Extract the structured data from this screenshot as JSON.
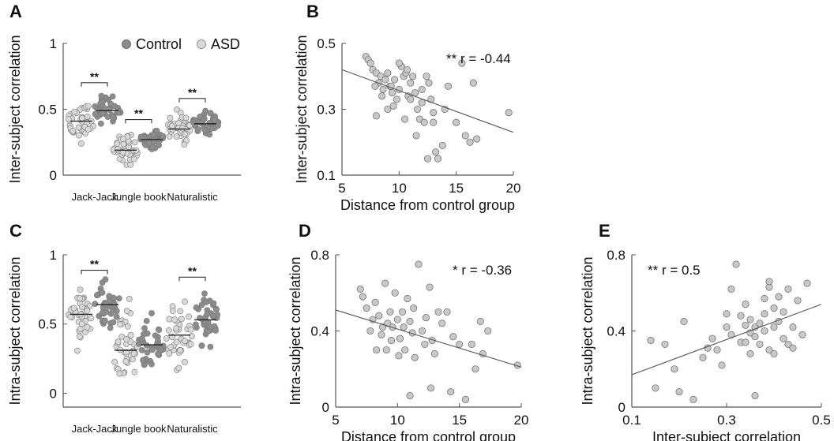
{
  "chart_data": [
    {
      "panel": "A",
      "type": "scatter",
      "ylabel": "Inter-subject correlation",
      "ylim": [
        0,
        1
      ],
      "yticks": [
        "0",
        "0.5",
        "1"
      ],
      "categories": [
        "Jack-Jack",
        "Jungle book",
        "Naturalistic"
      ],
      "legend": {
        "placement": "top-right",
        "items": [
          "Control",
          "ASD"
        ]
      },
      "series": [
        {
          "name": "ASD",
          "color": "#d9d9d9",
          "means": [
            0.41,
            0.19,
            0.35
          ],
          "spreads": [
            0.09,
            0.07,
            0.08
          ]
        },
        {
          "name": "Control",
          "color": "#8c8c8c",
          "means": [
            0.49,
            0.27,
            0.39
          ],
          "spreads": [
            0.07,
            0.04,
            0.06
          ]
        }
      ],
      "significance": [
        "**",
        "**",
        "**"
      ]
    },
    {
      "panel": "B",
      "type": "scatter",
      "xlabel": "Distance from control group",
      "ylabel": "Inter-subject correlation",
      "xlim": [
        5,
        20
      ],
      "ylim": [
        0.1,
        0.5
      ],
      "xticks": [
        "5",
        "10",
        "15",
        "20"
      ],
      "yticks": [
        "0.1",
        "0.3",
        "0.5"
      ],
      "annotation": "** r = -0.44",
      "fit": [
        [
          5,
          0.42
        ],
        [
          20,
          0.23
        ]
      ],
      "points": [
        [
          7.1,
          0.46
        ],
        [
          7.3,
          0.45
        ],
        [
          7.5,
          0.44
        ],
        [
          7.7,
          0.42
        ],
        [
          8.0,
          0.41
        ],
        [
          8.2,
          0.38
        ],
        [
          8.4,
          0.4
        ],
        [
          8.6,
          0.36
        ],
        [
          8.8,
          0.39
        ],
        [
          9.0,
          0.41
        ],
        [
          9.2,
          0.37
        ],
        [
          9.4,
          0.35
        ],
        [
          9.6,
          0.39
        ],
        [
          9.8,
          0.33
        ],
        [
          10.0,
          0.36
        ],
        [
          10.2,
          0.43
        ],
        [
          10.4,
          0.4
        ],
        [
          10.6,
          0.41
        ],
        [
          10.8,
          0.34
        ],
        [
          11.0,
          0.38
        ],
        [
          11.2,
          0.4
        ],
        [
          11.4,
          0.35
        ],
        [
          11.6,
          0.3
        ],
        [
          11.8,
          0.27
        ],
        [
          12.0,
          0.32
        ],
        [
          12.2,
          0.26
        ],
        [
          12.4,
          0.4
        ],
        [
          12.6,
          0.38
        ],
        [
          12.8,
          0.33
        ],
        [
          13.0,
          0.29
        ],
        [
          13.2,
          0.17
        ],
        [
          13.4,
          0.15
        ],
        [
          13.8,
          0.19
        ],
        [
          14.0,
          0.3
        ],
        [
          14.3,
          0.37
        ],
        [
          15.0,
          0.26
        ],
        [
          15.5,
          0.44
        ],
        [
          15.8,
          0.22
        ],
        [
          16.2,
          0.2
        ],
        [
          16.5,
          0.38
        ],
        [
          16.8,
          0.21
        ],
        [
          19.6,
          0.29
        ],
        [
          8.0,
          0.28
        ],
        [
          9.0,
          0.3
        ],
        [
          10.5,
          0.27
        ],
        [
          11.5,
          0.22
        ],
        [
          12.5,
          0.15
        ],
        [
          9.5,
          0.31
        ],
        [
          10.0,
          0.44
        ],
        [
          8.5,
          0.34
        ],
        [
          11.0,
          0.33
        ],
        [
          12.0,
          0.36
        ],
        [
          9.3,
          0.37
        ],
        [
          10.7,
          0.42
        ],
        [
          7.9,
          0.37
        ],
        [
          13.0,
          0.26
        ]
      ]
    },
    {
      "panel": "C",
      "type": "scatter",
      "ylabel": "Intra-subject correlation",
      "ylim": [
        -0.1,
        1
      ],
      "yticks": [
        "0",
        "0.5",
        "1"
      ],
      "categories": [
        "Jack-Jack",
        "Jungle book",
        "Naturalistic"
      ],
      "series": [
        {
          "name": "ASD",
          "color": "#d9d9d9",
          "means": [
            0.57,
            0.31,
            0.42
          ],
          "spreads": [
            0.12,
            0.17,
            0.15
          ]
        },
        {
          "name": "Control",
          "color": "#8c8c8c",
          "means": [
            0.64,
            0.35,
            0.53
          ],
          "spreads": [
            0.09,
            0.11,
            0.12
          ]
        }
      ],
      "significance": [
        "**",
        "",
        "**"
      ]
    },
    {
      "panel": "D",
      "type": "scatter",
      "xlabel": "Distance from control group",
      "ylabel": "Intra-subject correlation",
      "xlim": [
        5,
        20
      ],
      "ylim": [
        0,
        0.8
      ],
      "xticks": [
        "5",
        "10",
        "15",
        "20"
      ],
      "yticks": [
        "0",
        "0.4",
        "0.8"
      ],
      "annotation": "* r = -0.36",
      "fit": [
        [
          5,
          0.51
        ],
        [
          20,
          0.21
        ]
      ],
      "points": [
        [
          7.0,
          0.62
        ],
        [
          7.2,
          0.58
        ],
        [
          7.5,
          0.52
        ],
        [
          7.8,
          0.4
        ],
        [
          8.0,
          0.46
        ],
        [
          8.2,
          0.55
        ],
        [
          8.5,
          0.48
        ],
        [
          8.7,
          0.38
        ],
        [
          9.0,
          0.65
        ],
        [
          9.2,
          0.44
        ],
        [
          9.4,
          0.5
        ],
        [
          9.6,
          0.42
        ],
        [
          9.8,
          0.6
        ],
        [
          10.0,
          0.46
        ],
        [
          10.2,
          0.36
        ],
        [
          10.4,
          0.5
        ],
        [
          10.6,
          0.3
        ],
        [
          10.8,
          0.57
        ],
        [
          11.0,
          0.45
        ],
        [
          11.2,
          0.39
        ],
        [
          11.4,
          0.26
        ],
        [
          11.7,
          0.75
        ],
        [
          12.0,
          0.4
        ],
        [
          12.3,
          0.47
        ],
        [
          12.6,
          0.63
        ],
        [
          12.8,
          0.35
        ],
        [
          13.0,
          0.28
        ],
        [
          13.3,
          0.5
        ],
        [
          13.6,
          0.44
        ],
        [
          14.0,
          0.5
        ],
        [
          14.3,
          0.08
        ],
        [
          14.5,
          0.37
        ],
        [
          15.0,
          0.33
        ],
        [
          15.5,
          0.04
        ],
        [
          16.0,
          0.33
        ],
        [
          16.3,
          0.2
        ],
        [
          16.7,
          0.45
        ],
        [
          16.9,
          0.28
        ],
        [
          17.3,
          0.4
        ],
        [
          19.7,
          0.22
        ],
        [
          8.3,
          0.3
        ],
        [
          9.1,
          0.3
        ],
        [
          10.1,
          0.27
        ],
        [
          11.0,
          0.06
        ],
        [
          12.7,
          0.1
        ],
        [
          9.5,
          0.35
        ],
        [
          8.8,
          0.42
        ],
        [
          10.5,
          0.42
        ],
        [
          11.3,
          0.52
        ],
        [
          12.2,
          0.33
        ]
      ]
    },
    {
      "panel": "E",
      "type": "scatter",
      "xlabel": "Inter-subject correlation",
      "ylabel": "Intra-subject correlation",
      "xlim": [
        0.1,
        0.5
      ],
      "ylim": [
        0,
        0.8
      ],
      "xticks": [
        "0.1",
        "0.3",
        "0.5"
      ],
      "yticks": [
        "0",
        "0.4",
        "0.8"
      ],
      "annotation": "** r = 0.5",
      "fit": [
        [
          0.1,
          0.17
        ],
        [
          0.5,
          0.54
        ]
      ],
      "points": [
        [
          0.14,
          0.35
        ],
        [
          0.15,
          0.1
        ],
        [
          0.17,
          0.33
        ],
        [
          0.19,
          0.2
        ],
        [
          0.2,
          0.08
        ],
        [
          0.21,
          0.45
        ],
        [
          0.23,
          0.04
        ],
        [
          0.25,
          0.26
        ],
        [
          0.26,
          0.31
        ],
        [
          0.27,
          0.36
        ],
        [
          0.28,
          0.3
        ],
        [
          0.29,
          0.22
        ],
        [
          0.3,
          0.42
        ],
        [
          0.3,
          0.49
        ],
        [
          0.31,
          0.38
        ],
        [
          0.31,
          0.62
        ],
        [
          0.32,
          0.75
        ],
        [
          0.33,
          0.34
        ],
        [
          0.33,
          0.48
        ],
        [
          0.34,
          0.43
        ],
        [
          0.34,
          0.54
        ],
        [
          0.35,
          0.28
        ],
        [
          0.35,
          0.39
        ],
        [
          0.35,
          0.46
        ],
        [
          0.36,
          0.06
        ],
        [
          0.36,
          0.42
        ],
        [
          0.36,
          0.37
        ],
        [
          0.37,
          0.33
        ],
        [
          0.37,
          0.44
        ],
        [
          0.38,
          0.49
        ],
        [
          0.38,
          0.4
        ],
        [
          0.38,
          0.57
        ],
        [
          0.39,
          0.3
        ],
        [
          0.39,
          0.63
        ],
        [
          0.39,
          0.66
        ],
        [
          0.4,
          0.42
        ],
        [
          0.4,
          0.52
        ],
        [
          0.4,
          0.28
        ],
        [
          0.41,
          0.45
        ],
        [
          0.41,
          0.58
        ],
        [
          0.42,
          0.36
        ],
        [
          0.42,
          0.5
        ],
        [
          0.43,
          0.62
        ],
        [
          0.43,
          0.33
        ],
        [
          0.44,
          0.42
        ],
        [
          0.44,
          0.31
        ],
        [
          0.45,
          0.56
        ],
        [
          0.46,
          0.38
        ],
        [
          0.47,
          0.65
        ],
        [
          0.34,
          0.34
        ]
      ]
    }
  ],
  "panels": {
    "A": "A",
    "B": "B",
    "C": "C",
    "D": "D",
    "E": "E"
  }
}
